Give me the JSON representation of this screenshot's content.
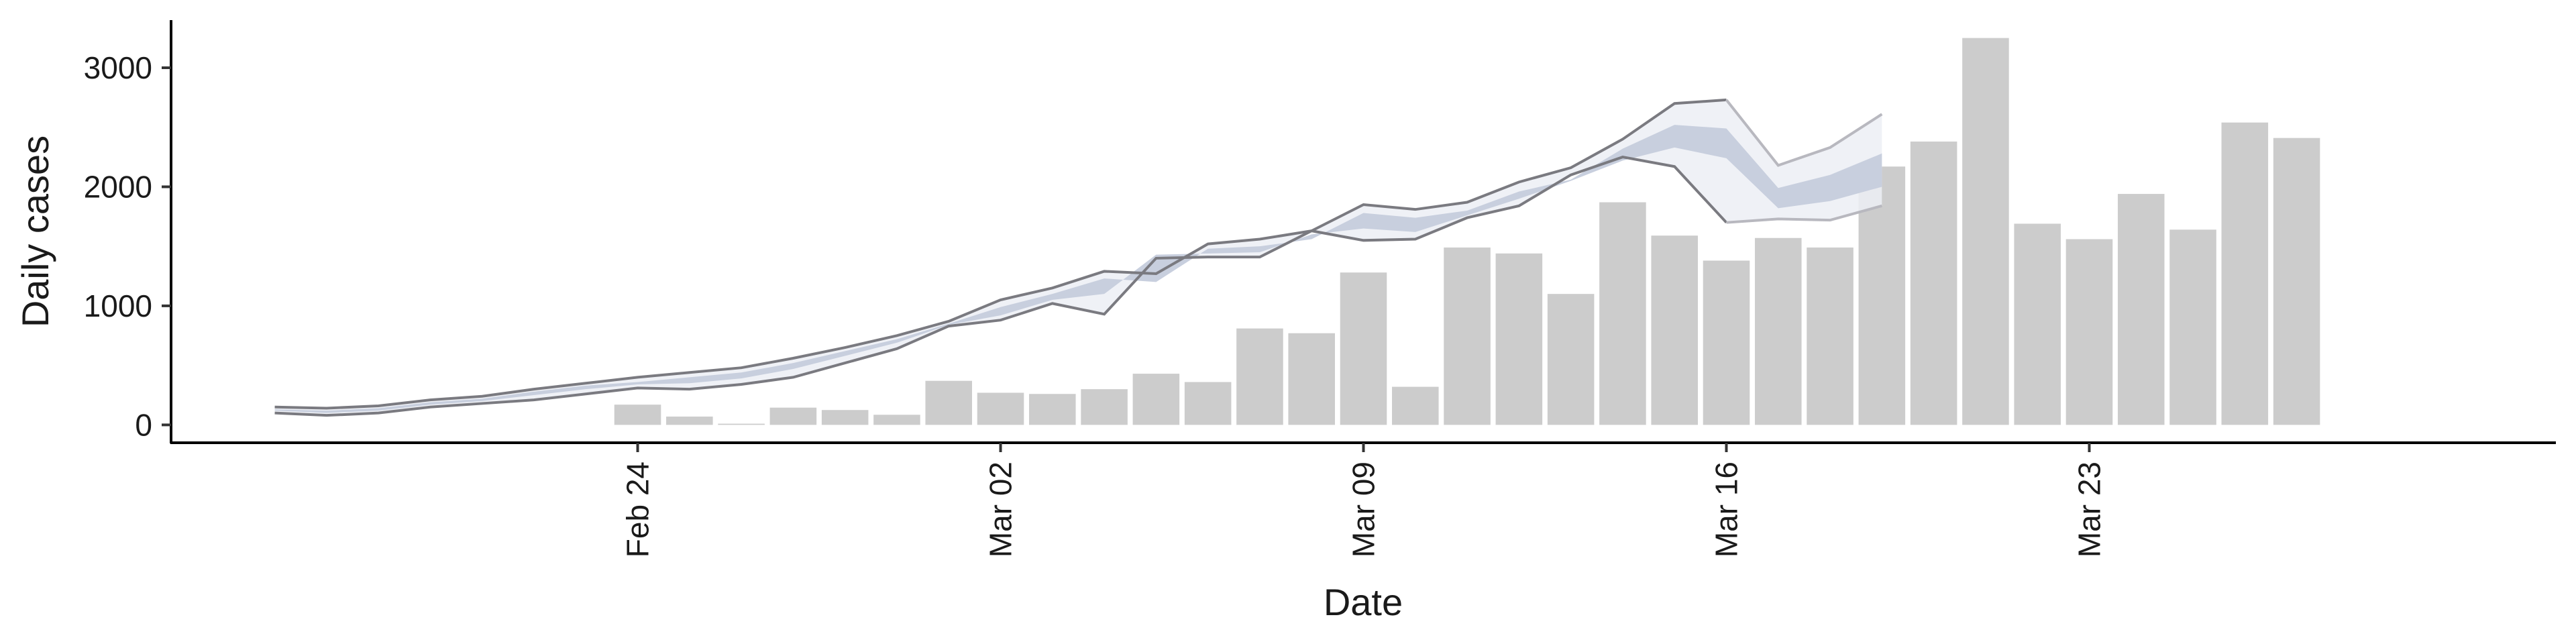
{
  "chart_data": {
    "type": "bar",
    "xlabel": "Date",
    "ylabel": "Daily cases",
    "ylim": [
      -150,
      3400
    ],
    "xlim": [
      "2020-02-15",
      "2020-04-01"
    ],
    "grid": false,
    "legend": "none",
    "x_ticks": [
      {
        "date": "2020-02-24",
        "label": "Feb 24"
      },
      {
        "date": "2020-03-02",
        "label": "Mar 02"
      },
      {
        "date": "2020-03-09",
        "label": "Mar 09"
      },
      {
        "date": "2020-03-16",
        "label": "Mar 16"
      },
      {
        "date": "2020-03-23",
        "label": "Mar 23"
      }
    ],
    "y_ticks": [
      0,
      1000,
      2000,
      3000
    ],
    "bars": [
      {
        "date": "2020-02-24",
        "value": 170
      },
      {
        "date": "2020-02-25",
        "value": 70
      },
      {
        "date": "2020-02-26",
        "value": 10
      },
      {
        "date": "2020-02-27",
        "value": 145
      },
      {
        "date": "2020-02-28",
        "value": 125
      },
      {
        "date": "2020-02-29",
        "value": 85
      },
      {
        "date": "2020-03-01",
        "value": 370
      },
      {
        "date": "2020-03-02",
        "value": 270
      },
      {
        "date": "2020-03-03",
        "value": 260
      },
      {
        "date": "2020-03-04",
        "value": 300
      },
      {
        "date": "2020-03-05",
        "value": 430
      },
      {
        "date": "2020-03-06",
        "value": 360
      },
      {
        "date": "2020-03-07",
        "value": 810
      },
      {
        "date": "2020-03-08",
        "value": 770
      },
      {
        "date": "2020-03-09",
        "value": 1280
      },
      {
        "date": "2020-03-10",
        "value": 320
      },
      {
        "date": "2020-03-11",
        "value": 1490
      },
      {
        "date": "2020-03-12",
        "value": 1440
      },
      {
        "date": "2020-03-13",
        "value": 1100
      },
      {
        "date": "2020-03-14",
        "value": 1870
      },
      {
        "date": "2020-03-15",
        "value": 1590
      },
      {
        "date": "2020-03-16",
        "value": 1380
      },
      {
        "date": "2020-03-17",
        "value": 1570
      },
      {
        "date": "2020-03-18",
        "value": 1490
      },
      {
        "date": "2020-03-19",
        "value": 2170
      },
      {
        "date": "2020-03-20",
        "value": 2380
      },
      {
        "date": "2020-03-21",
        "value": 3250
      },
      {
        "date": "2020-03-22",
        "value": 1690
      },
      {
        "date": "2020-03-23",
        "value": 1560
      },
      {
        "date": "2020-03-24",
        "value": 1940
      },
      {
        "date": "2020-03-25",
        "value": 1640
      },
      {
        "date": "2020-03-26",
        "value": 2540
      },
      {
        "date": "2020-03-27",
        "value": 2410
      }
    ],
    "estimate_band": {
      "dates": [
        "2020-02-17",
        "2020-02-18",
        "2020-02-19",
        "2020-02-20",
        "2020-02-21",
        "2020-02-22",
        "2020-02-23",
        "2020-02-24",
        "2020-02-25",
        "2020-02-26",
        "2020-02-27",
        "2020-02-28",
        "2020-02-29",
        "2020-03-01",
        "2020-03-02",
        "2020-03-03",
        "2020-03-04",
        "2020-03-05",
        "2020-03-06",
        "2020-03-07",
        "2020-03-08",
        "2020-03-09",
        "2020-03-10",
        "2020-03-11",
        "2020-03-12",
        "2020-03-13",
        "2020-03-14",
        "2020-03-15",
        "2020-03-16",
        "2020-03-17",
        "2020-03-18",
        "2020-03-19"
      ],
      "outer_upper": [
        150,
        140,
        160,
        210,
        240,
        300,
        350,
        400,
        440,
        480,
        560,
        650,
        750,
        870,
        1050,
        1150,
        1290,
        1270,
        1520,
        1560,
        1630,
        1850,
        1810,
        1870,
        2040,
        2160,
        2400,
        2700,
        2730,
        2180,
        2330,
        2610
      ],
      "outer_lower": [
        100,
        80,
        100,
        150,
        180,
        210,
        260,
        310,
        300,
        340,
        400,
        520,
        640,
        830,
        880,
        1020,
        930,
        1400,
        1410,
        1410,
        1630,
        1550,
        1560,
        1740,
        1840,
        2100,
        2250,
        2170,
        1700,
        1730,
        1720,
        1840
      ],
      "inner_upper": [
        130,
        120,
        140,
        190,
        220,
        280,
        330,
        360,
        400,
        440,
        520,
        620,
        720,
        850,
        990,
        1100,
        1230,
        1200,
        1480,
        1500,
        1560,
        1780,
        1740,
        1800,
        1960,
        2060,
        2320,
        2520,
        2490,
        1990,
        2100,
        2280
      ],
      "inner_lower": [
        120,
        100,
        120,
        170,
        200,
        250,
        300,
        340,
        350,
        390,
        470,
        580,
        690,
        840,
        920,
        1050,
        1100,
        1430,
        1440,
        1450,
        1600,
        1650,
        1620,
        1760,
        1900,
        2050,
        2220,
        2330,
        2240,
        1820,
        1880,
        2000
      ]
    },
    "colors": {
      "bars": "#cccccc",
      "band_outer": "#eceef4",
      "band_inner": "#c8cfde",
      "band_edge": "#7a7a80",
      "band_edge_forecast": "#b8b8bf"
    },
    "forecast_start": "2020-03-17"
  }
}
